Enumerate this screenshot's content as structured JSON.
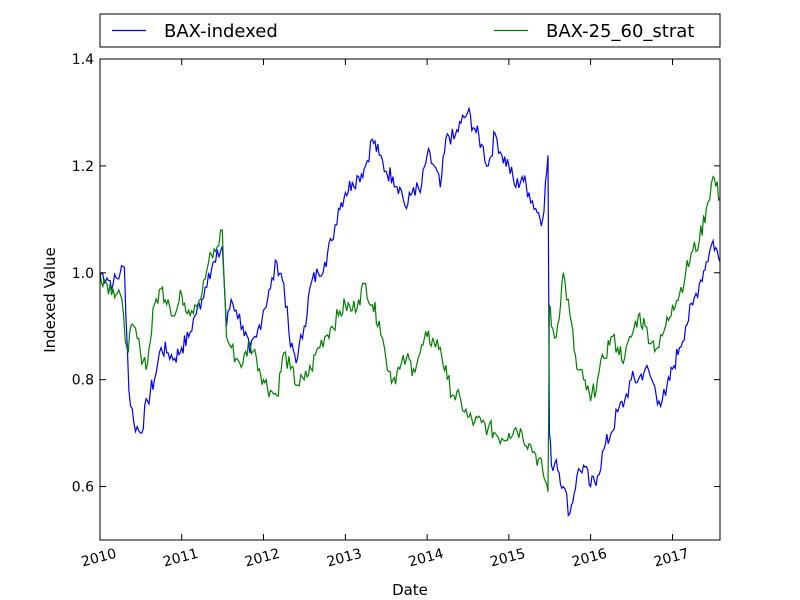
{
  "chart_data": {
    "type": "line",
    "title": "",
    "xlabel": "Date",
    "ylabel": "Indexed Value",
    "xlim": [
      "2010-01-01",
      "2017-08-01"
    ],
    "ylim": [
      0.5,
      1.4
    ],
    "x_ticks": [
      "2010",
      "2011",
      "2012",
      "2013",
      "2014",
      "2015",
      "2016",
      "2017"
    ],
    "y_ticks": [
      "0.6",
      "0.8",
      "1.0",
      "1.2",
      "1.4"
    ],
    "grid": false,
    "legend_position": "top",
    "series": [
      {
        "name": "BAX-indexed",
        "color": "#0000ff",
        "x": [
          "2010-01-01",
          "2010-02-01",
          "2010-03-01",
          "2010-04-01",
          "2010-04-20",
          "2010-05-10",
          "2010-06-01",
          "2010-07-01",
          "2010-08-01",
          "2010-09-01",
          "2010-10-01",
          "2010-11-01",
          "2010-12-01",
          "2011-01-01",
          "2011-02-01",
          "2011-03-01",
          "2011-04-01",
          "2011-05-01",
          "2011-06-01",
          "2011-07-01",
          "2011-07-20",
          "2011-08-10",
          "2011-09-01",
          "2011-10-01",
          "2011-11-01",
          "2011-12-01",
          "2012-01-01",
          "2012-02-01",
          "2012-03-01",
          "2012-04-01",
          "2012-05-01",
          "2012-06-01",
          "2012-07-01",
          "2012-08-01",
          "2012-09-01",
          "2012-10-01",
          "2012-11-01",
          "2012-12-01",
          "2013-01-01",
          "2013-02-01",
          "2013-03-01",
          "2013-04-01",
          "2013-05-01",
          "2013-06-01",
          "2013-07-01",
          "2013-08-01",
          "2013-09-01",
          "2013-10-01",
          "2013-11-01",
          "2013-12-01",
          "2014-01-01",
          "2014-02-01",
          "2014-03-01",
          "2014-04-01",
          "2014-05-01",
          "2014-06-01",
          "2014-07-01",
          "2014-08-01",
          "2014-09-01",
          "2014-10-01",
          "2014-11-01",
          "2014-12-01",
          "2015-01-01",
          "2015-02-01",
          "2015-03-01",
          "2015-04-01",
          "2015-05-01",
          "2015-06-01",
          "2015-06-25",
          "2015-07-01",
          "2015-07-10",
          "2015-08-01",
          "2015-09-01",
          "2015-10-01",
          "2015-11-01",
          "2015-12-01",
          "2016-01-01",
          "2016-02-01",
          "2016-03-01",
          "2016-04-01",
          "2016-05-01",
          "2016-06-01",
          "2016-07-01",
          "2016-08-01",
          "2016-09-01",
          "2016-10-01",
          "2016-11-01",
          "2016-12-01",
          "2017-01-01",
          "2017-02-01",
          "2017-03-01",
          "2017-04-01",
          "2017-05-01",
          "2017-06-01",
          "2017-07-01",
          "2017-08-01"
        ],
        "y": [
          1.0,
          0.99,
          0.98,
          1.0,
          1.01,
          0.78,
          0.72,
          0.7,
          0.76,
          0.8,
          0.86,
          0.85,
          0.84,
          0.86,
          0.88,
          0.92,
          0.95,
          1.0,
          1.02,
          1.05,
          0.9,
          0.95,
          0.93,
          0.9,
          0.85,
          0.88,
          0.93,
          0.97,
          1.02,
          0.98,
          0.86,
          0.84,
          0.9,
          0.98,
          1.0,
          1.02,
          1.06,
          1.12,
          1.15,
          1.17,
          1.18,
          1.2,
          1.25,
          1.22,
          1.19,
          1.18,
          1.16,
          1.12,
          1.16,
          1.15,
          1.22,
          1.2,
          1.16,
          1.26,
          1.25,
          1.28,
          1.3,
          1.27,
          1.24,
          1.2,
          1.26,
          1.22,
          1.2,
          1.16,
          1.18,
          1.15,
          1.12,
          1.1,
          1.22,
          0.7,
          0.64,
          0.65,
          0.6,
          0.55,
          0.62,
          0.64,
          0.6,
          0.62,
          0.67,
          0.7,
          0.74,
          0.76,
          0.8,
          0.8,
          0.82,
          0.8,
          0.76,
          0.77,
          0.82,
          0.86,
          0.9,
          0.94,
          0.98,
          1.02,
          1.06,
          1.02
        ]
      },
      {
        "name": "BAX-25_60_strat",
        "color": "#008000",
        "x": [
          "2010-01-01",
          "2010-02-01",
          "2010-03-01",
          "2010-04-01",
          "2010-05-01",
          "2010-06-01",
          "2010-07-01",
          "2010-08-01",
          "2010-09-01",
          "2010-10-01",
          "2010-11-01",
          "2010-12-01",
          "2011-01-01",
          "2011-02-01",
          "2011-03-01",
          "2011-04-01",
          "2011-05-01",
          "2011-06-01",
          "2011-07-01",
          "2011-07-20",
          "2011-08-10",
          "2011-09-01",
          "2011-10-01",
          "2011-11-01",
          "2011-12-01",
          "2012-01-01",
          "2012-02-01",
          "2012-03-01",
          "2012-04-01",
          "2012-05-01",
          "2012-06-01",
          "2012-07-01",
          "2012-08-01",
          "2012-09-01",
          "2012-10-01",
          "2012-11-01",
          "2012-12-01",
          "2013-01-01",
          "2013-02-01",
          "2013-03-01",
          "2013-04-01",
          "2013-05-01",
          "2013-06-01",
          "2013-07-01",
          "2013-08-01",
          "2013-09-01",
          "2013-10-01",
          "2013-11-01",
          "2013-12-01",
          "2014-01-01",
          "2014-02-01",
          "2014-03-01",
          "2014-04-01",
          "2014-05-01",
          "2014-06-01",
          "2014-07-01",
          "2014-08-01",
          "2014-09-01",
          "2014-10-01",
          "2014-11-01",
          "2014-12-01",
          "2015-01-01",
          "2015-02-01",
          "2015-03-01",
          "2015-04-01",
          "2015-05-01",
          "2015-06-01",
          "2015-06-25",
          "2015-07-01",
          "2015-07-10",
          "2015-08-01",
          "2015-09-01",
          "2015-10-01",
          "2015-11-01",
          "2015-12-01",
          "2016-01-01",
          "2016-02-01",
          "2016-03-01",
          "2016-04-01",
          "2016-05-01",
          "2016-06-01",
          "2016-07-01",
          "2016-08-01",
          "2016-09-01",
          "2016-10-01",
          "2016-11-01",
          "2016-12-01",
          "2017-01-01",
          "2017-02-01",
          "2017-03-01",
          "2017-04-01",
          "2017-05-01",
          "2017-06-01",
          "2017-07-01",
          "2017-08-01"
        ],
        "y": [
          1.0,
          0.98,
          0.97,
          0.96,
          0.86,
          0.9,
          0.85,
          0.83,
          0.94,
          0.97,
          0.95,
          0.92,
          0.96,
          0.93,
          0.94,
          0.96,
          1.02,
          1.04,
          1.08,
          0.88,
          0.86,
          0.84,
          0.83,
          0.87,
          0.84,
          0.8,
          0.78,
          0.77,
          0.85,
          0.82,
          0.79,
          0.8,
          0.82,
          0.86,
          0.88,
          0.9,
          0.92,
          0.94,
          0.93,
          0.95,
          0.98,
          0.94,
          0.91,
          0.84,
          0.8,
          0.82,
          0.84,
          0.82,
          0.85,
          0.88,
          0.87,
          0.86,
          0.8,
          0.77,
          0.76,
          0.73,
          0.72,
          0.72,
          0.71,
          0.7,
          0.69,
          0.7,
          0.71,
          0.7,
          0.68,
          0.66,
          0.63,
          0.59,
          0.94,
          0.9,
          0.88,
          1.0,
          0.92,
          0.82,
          0.8,
          0.76,
          0.8,
          0.84,
          0.88,
          0.86,
          0.84,
          0.88,
          0.92,
          0.9,
          0.87,
          0.86,
          0.9,
          0.94,
          0.96,
          1.0,
          1.04,
          1.06,
          1.12,
          1.18,
          1.14
        ]
      }
    ]
  }
}
